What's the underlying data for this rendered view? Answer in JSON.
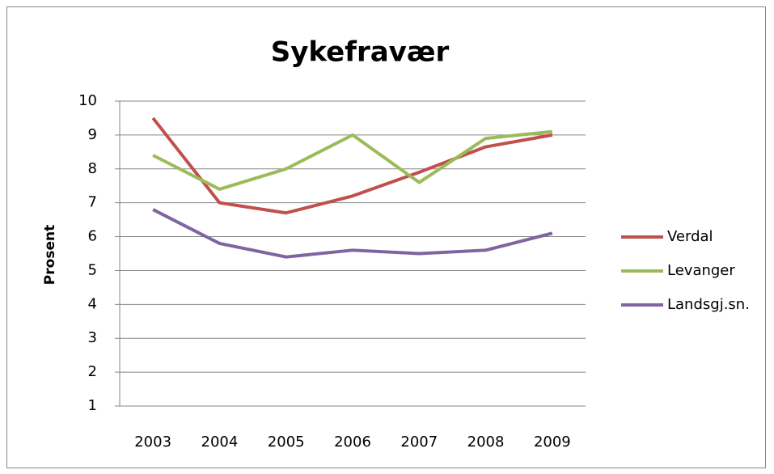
{
  "chart_data": {
    "type": "line",
    "title": "Sykefravær",
    "y_label": "Prosent",
    "categories": [
      "2003",
      "2004",
      "2005",
      "2006",
      "2007",
      "2008",
      "2009"
    ],
    "series": [
      {
        "name": "Verdal",
        "color": "#c0504d",
        "values": [
          9.5,
          7.0,
          6.7,
          7.2,
          7.9,
          8.65,
          9.0
        ]
      },
      {
        "name": "Levanger",
        "color": "#9bbb59",
        "values": [
          8.4,
          7.4,
          8.0,
          9.0,
          7.6,
          8.9,
          9.1
        ]
      },
      {
        "name": "Landsgj.sn.",
        "color": "#8064a2",
        "values": [
          6.8,
          5.8,
          5.4,
          5.6,
          5.5,
          5.6,
          6.1
        ]
      }
    ],
    "ylim": [
      1,
      10
    ],
    "yticks": [
      1,
      2,
      3,
      4,
      5,
      6,
      7,
      8,
      9,
      10
    ],
    "grid": true,
    "legend": "right"
  }
}
